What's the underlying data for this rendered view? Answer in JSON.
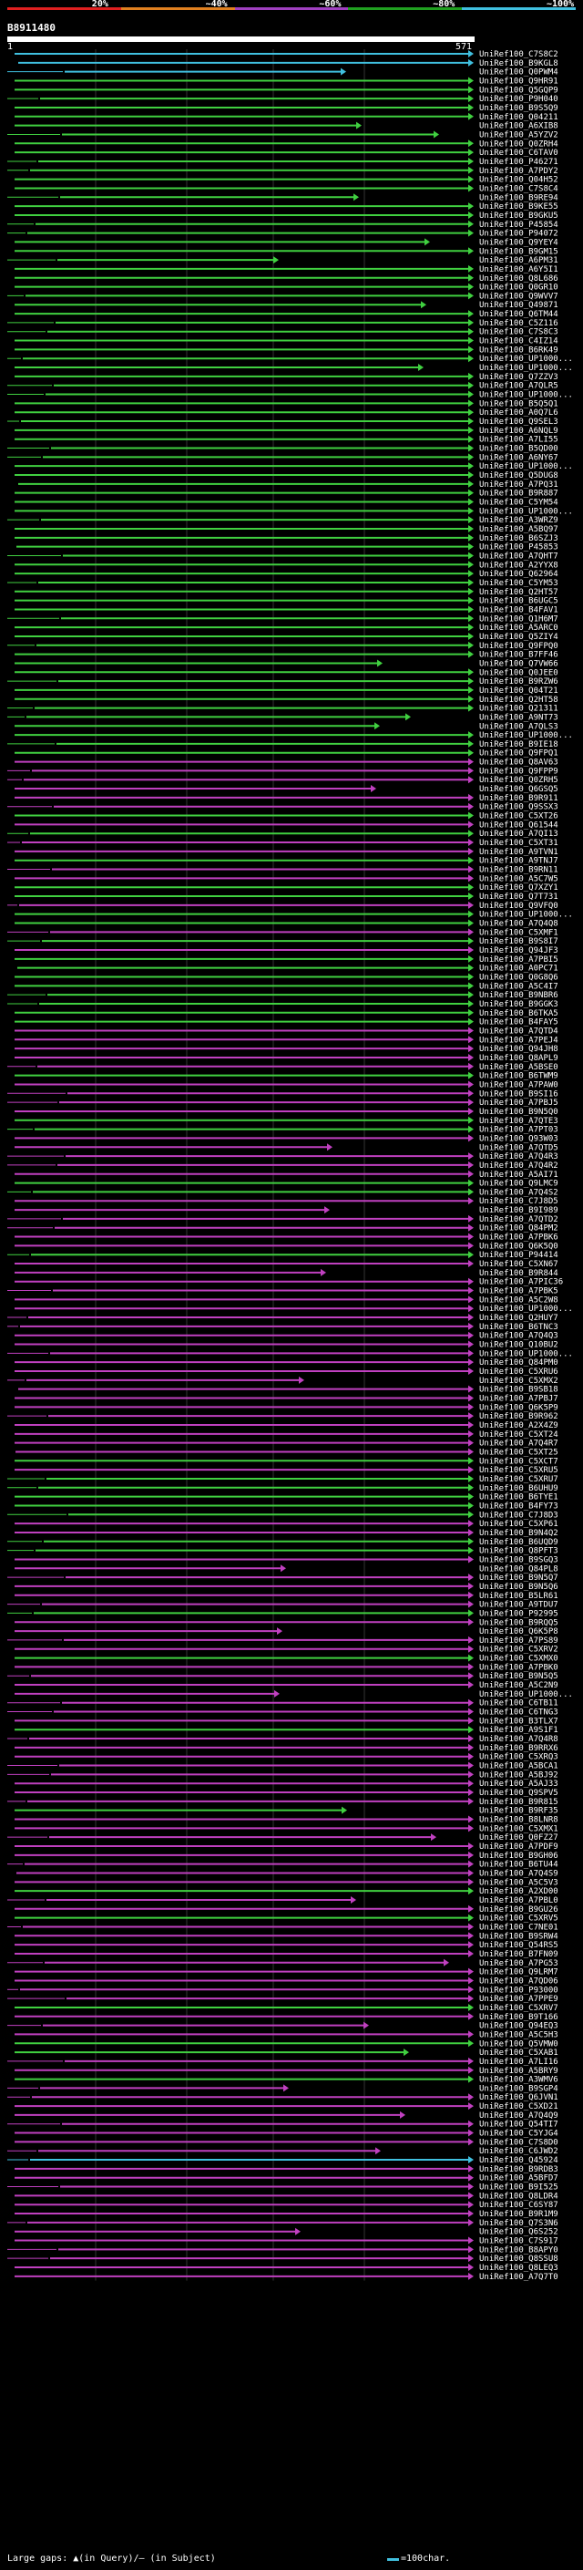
{
  "legend": {
    "labels": [
      "20%",
      "~40%",
      "~60%",
      "~80%",
      "~100%"
    ],
    "colors": [
      "#e02020",
      "#e08020",
      "#a040c0",
      "#20a020",
      "#40c0e0"
    ]
  },
  "query": {
    "id": "B8911480",
    "start": "1",
    "end": "571"
  },
  "colors": {
    "cyan": "#40c0e0",
    "green": "#40d040",
    "magenta": "#c040c0"
  },
  "hits": [
    {
      "id": "UniRef100_C7S8C2",
      "c": "cyan"
    },
    {
      "id": "UniRef100_B9KGL8",
      "c": "cyan"
    },
    {
      "id": "UniRef100_Q0PWM4",
      "c": "cyan"
    },
    {
      "id": "UniRef100_Q9HR91",
      "c": "green"
    },
    {
      "id": "UniRef100_Q5GQP9",
      "c": "green"
    },
    {
      "id": "UniRef100_P9H040",
      "c": "green"
    },
    {
      "id": "UniRef100_B9S5Q9",
      "c": "green"
    },
    {
      "id": "UniRef100_Q04211",
      "c": "green"
    },
    {
      "id": "UniRef100_A6XIB8",
      "c": "green"
    },
    {
      "id": "UniRef100_A5YZV2",
      "c": "green"
    },
    {
      "id": "UniRef100_Q0ZRH4",
      "c": "green"
    },
    {
      "id": "UniRef100_C6TAV0",
      "c": "green"
    },
    {
      "id": "UniRef100_P46271",
      "c": "green"
    },
    {
      "id": "UniRef100_A7PDY2",
      "c": "green"
    },
    {
      "id": "UniRef100_Q04H52",
      "c": "green"
    },
    {
      "id": "UniRef100_C7S8C4",
      "c": "green"
    },
    {
      "id": "UniRef100_B9RE94",
      "c": "green"
    },
    {
      "id": "UniRef100_B9KE55",
      "c": "green"
    },
    {
      "id": "UniRef100_B9GKU5",
      "c": "green"
    },
    {
      "id": "UniRef100_P45854",
      "c": "green"
    },
    {
      "id": "UniRef100_P94072",
      "c": "green"
    },
    {
      "id": "UniRef100_Q9YEY4",
      "c": "green"
    },
    {
      "id": "UniRef100_B9GM15",
      "c": "green"
    },
    {
      "id": "UniRef100_A6PM31",
      "c": "green"
    },
    {
      "id": "UniRef100_A6Y5I1",
      "c": "green"
    },
    {
      "id": "UniRef100_Q8L686",
      "c": "green"
    },
    {
      "id": "UniRef100_Q0GR10",
      "c": "green"
    },
    {
      "id": "UniRef100_Q9WVV7",
      "c": "green"
    },
    {
      "id": "UniRef100_Q49871",
      "c": "green"
    },
    {
      "id": "UniRef100_Q6TM44",
      "c": "green"
    },
    {
      "id": "UniRef100_C5Z116",
      "c": "green"
    },
    {
      "id": "UniRef100_C7S8C3",
      "c": "green"
    },
    {
      "id": "UniRef100_C4IZ14",
      "c": "green"
    },
    {
      "id": "UniRef100_B6RK49",
      "c": "green"
    },
    {
      "id": "UniRef100_UP1000...",
      "c": "green"
    },
    {
      "id": "UniRef100_UP1000...",
      "c": "green"
    },
    {
      "id": "UniRef100_Q7ZZV3",
      "c": "green"
    },
    {
      "id": "UniRef100_A7QLR5",
      "c": "green"
    },
    {
      "id": "UniRef100_UP1000...",
      "c": "green"
    },
    {
      "id": "UniRef100_B5Q5Q1",
      "c": "green"
    },
    {
      "id": "UniRef100_A0Q7L6",
      "c": "green"
    },
    {
      "id": "UniRef100_Q9SEL3",
      "c": "green"
    },
    {
      "id": "UniRef100_A6NQL9",
      "c": "green"
    },
    {
      "id": "UniRef100_A7LI55",
      "c": "green"
    },
    {
      "id": "UniRef100_B5QD00",
      "c": "green"
    },
    {
      "id": "UniRef100_A6NY67",
      "c": "green"
    },
    {
      "id": "UniRef100_UP1000...",
      "c": "green"
    },
    {
      "id": "UniRef100_Q5DUG8",
      "c": "green"
    },
    {
      "id": "UniRef100_A7PQ31",
      "c": "green"
    },
    {
      "id": "UniRef100_B9R887",
      "c": "green"
    },
    {
      "id": "UniRef100_C5YM54",
      "c": "green"
    },
    {
      "id": "UniRef100_UP1000...",
      "c": "green"
    },
    {
      "id": "UniRef100_A3WRZ9",
      "c": "green"
    },
    {
      "id": "UniRef100_A5BQ97",
      "c": "green"
    },
    {
      "id": "UniRef100_B6SZJ3",
      "c": "green"
    },
    {
      "id": "UniRef100_P45853",
      "c": "green"
    },
    {
      "id": "UniRef100_A7QHT7",
      "c": "green"
    },
    {
      "id": "UniRef100_A2YYX8",
      "c": "green"
    },
    {
      "id": "UniRef100_Q62964",
      "c": "green"
    },
    {
      "id": "UniRef100_C5YM53",
      "c": "green"
    },
    {
      "id": "UniRef100_Q2HT57",
      "c": "green"
    },
    {
      "id": "UniRef100_B6UGC5",
      "c": "green"
    },
    {
      "id": "UniRef100_B4FAV1",
      "c": "green"
    },
    {
      "id": "UniRef100_Q1H6M7",
      "c": "green"
    },
    {
      "id": "UniRef100_A5ARC0",
      "c": "green"
    },
    {
      "id": "UniRef100_Q5ZIY4",
      "c": "green"
    },
    {
      "id": "UniRef100_Q9FPQ0",
      "c": "green"
    },
    {
      "id": "UniRef100_B7FF46",
      "c": "green"
    },
    {
      "id": "UniRef100_Q7VW66",
      "c": "green"
    },
    {
      "id": "UniRef100_Q0JEE0",
      "c": "green"
    },
    {
      "id": "UniRef100_B9RZW6",
      "c": "green"
    },
    {
      "id": "UniRef100_Q04T21",
      "c": "green"
    },
    {
      "id": "UniRef100_Q2HT58",
      "c": "green"
    },
    {
      "id": "UniRef100_Q21311",
      "c": "green"
    },
    {
      "id": "UniRef100_A9NT73",
      "c": "green"
    },
    {
      "id": "UniRef100_A7QLS3",
      "c": "green"
    },
    {
      "id": "UniRef100_UP1000...",
      "c": "green"
    },
    {
      "id": "UniRef100_B9IE18",
      "c": "green"
    },
    {
      "id": "UniRef100_Q9FPQ1",
      "c": "green"
    },
    {
      "id": "UniRef100_Q8AV63",
      "c": "magenta"
    },
    {
      "id": "UniRef100_Q9FPP9",
      "c": "magenta"
    },
    {
      "id": "UniRef100_Q0ZRH5",
      "c": "magenta"
    },
    {
      "id": "UniRef100_Q6GSQ5",
      "c": "magenta"
    },
    {
      "id": "UniRef100_B9R911",
      "c": "magenta"
    },
    {
      "id": "UniRef100_Q9SSX3",
      "c": "magenta"
    },
    {
      "id": "UniRef100_C5XT26",
      "c": "green"
    },
    {
      "id": "UniRef100_Q61544",
      "c": "magenta"
    },
    {
      "id": "UniRef100_A7QI13",
      "c": "green"
    },
    {
      "id": "UniRef100_C5XT31",
      "c": "magenta"
    },
    {
      "id": "UniRef100_A9TVN1",
      "c": "magenta"
    },
    {
      "id": "UniRef100_A9TNJ7",
      "c": "green"
    },
    {
      "id": "UniRef100_B9RN11",
      "c": "magenta"
    },
    {
      "id": "UniRef100_A5C7W5",
      "c": "magenta"
    },
    {
      "id": "UniRef100_Q7XZY1",
      "c": "green"
    },
    {
      "id": "UniRef100_Q7T731",
      "c": "green"
    },
    {
      "id": "UniRef100_Q9VFQ0",
      "c": "magenta"
    },
    {
      "id": "UniRef100_UP1000...",
      "c": "green"
    },
    {
      "id": "UniRef100_A7Q4Q8",
      "c": "green"
    },
    {
      "id": "UniRef100_C5XMF1",
      "c": "magenta"
    },
    {
      "id": "UniRef100_B9S8I7",
      "c": "green"
    },
    {
      "id": "UniRef100_Q94JF3",
      "c": "magenta"
    },
    {
      "id": "UniRef100_A7PBI5",
      "c": "green"
    },
    {
      "id": "UniRef100_A0PC71",
      "c": "green"
    },
    {
      "id": "UniRef100_Q0G8Q6",
      "c": "green"
    },
    {
      "id": "UniRef100_A5C4I7",
      "c": "green"
    },
    {
      "id": "UniRef100_B9NBR6",
      "c": "green"
    },
    {
      "id": "UniRef100_B9GGK3",
      "c": "green"
    },
    {
      "id": "UniRef100_B6TKA5",
      "c": "green"
    },
    {
      "id": "UniRef100_B4FAY5",
      "c": "green"
    },
    {
      "id": "UniRef100_A7QTD4",
      "c": "magenta"
    },
    {
      "id": "UniRef100_A7PEJ4",
      "c": "magenta"
    },
    {
      "id": "UniRef100_Q94JH8",
      "c": "magenta"
    },
    {
      "id": "UniRef100_Q8APL9",
      "c": "magenta"
    },
    {
      "id": "UniRef100_A5BSE0",
      "c": "magenta"
    },
    {
      "id": "UniRef100_B6TWM9",
      "c": "green"
    },
    {
      "id": "UniRef100_A7PAW0",
      "c": "magenta"
    },
    {
      "id": "UniRef100_B9SI16",
      "c": "magenta"
    },
    {
      "id": "UniRef100_A7PBJ5",
      "c": "magenta"
    },
    {
      "id": "UniRef100_B9N5Q0",
      "c": "magenta"
    },
    {
      "id": "UniRef100_A7QTE3",
      "c": "green"
    },
    {
      "id": "UniRef100_A7PT03",
      "c": "green"
    },
    {
      "id": "UniRef100_Q93W03",
      "c": "magenta"
    },
    {
      "id": "UniRef100_A7QTD5",
      "c": "magenta"
    },
    {
      "id": "UniRef100_A7Q4R3",
      "c": "magenta"
    },
    {
      "id": "UniRef100_A7Q4R2",
      "c": "magenta"
    },
    {
      "id": "UniRef100_A5AI71",
      "c": "magenta"
    },
    {
      "id": "UniRef100_Q9LMC9",
      "c": "green"
    },
    {
      "id": "UniRef100_A7Q4S2",
      "c": "green"
    },
    {
      "id": "UniRef100_C7J8D5",
      "c": "magenta"
    },
    {
      "id": "UniRef100_B9I989",
      "c": "magenta"
    },
    {
      "id": "UniRef100_A7QTD2",
      "c": "magenta"
    },
    {
      "id": "UniRef100_Q84PM2",
      "c": "magenta"
    },
    {
      "id": "UniRef100_A7PBK6",
      "c": "magenta"
    },
    {
      "id": "UniRef100_Q6K5Q0",
      "c": "magenta"
    },
    {
      "id": "UniRef100_P94414",
      "c": "green"
    },
    {
      "id": "UniRef100_C5XN67",
      "c": "magenta"
    },
    {
      "id": "UniRef100_B9R844",
      "c": "magenta"
    },
    {
      "id": "UniRef100_A7PIC36",
      "c": "magenta"
    },
    {
      "id": "UniRef100_A7PBK5",
      "c": "magenta"
    },
    {
      "id": "UniRef100_A5C2W8",
      "c": "magenta"
    },
    {
      "id": "UniRef100_UP1000...",
      "c": "magenta"
    },
    {
      "id": "UniRef100_Q2HUY7",
      "c": "magenta"
    },
    {
      "id": "UniRef100_B6TNC3",
      "c": "magenta"
    },
    {
      "id": "UniRef100_A7Q4Q3",
      "c": "magenta"
    },
    {
      "id": "UniRef100_Q10BU2",
      "c": "magenta"
    },
    {
      "id": "UniRef100_UP1000...",
      "c": "magenta"
    },
    {
      "id": "UniRef100_Q84PM0",
      "c": "magenta"
    },
    {
      "id": "UniRef100_C5XRU6",
      "c": "magenta"
    },
    {
      "id": "UniRef100_C5XMX2",
      "c": "magenta"
    },
    {
      "id": "UniRef100_B9SB18",
      "c": "magenta"
    },
    {
      "id": "UniRef100_A7PBJ7",
      "c": "magenta"
    },
    {
      "id": "UniRef100_Q6K5P9",
      "c": "magenta"
    },
    {
      "id": "UniRef100_B9R962",
      "c": "magenta"
    },
    {
      "id": "UniRef100_A2X4Z9",
      "c": "magenta"
    },
    {
      "id": "UniRef100_C5XT24",
      "c": "magenta"
    },
    {
      "id": "UniRef100_A7Q4R7",
      "c": "magenta"
    },
    {
      "id": "UniRef100_C5XT25",
      "c": "magenta"
    },
    {
      "id": "UniRef100_C5XCT7",
      "c": "green"
    },
    {
      "id": "UniRef100_C5XRU5",
      "c": "magenta"
    },
    {
      "id": "UniRef100_C5XRU7",
      "c": "green"
    },
    {
      "id": "UniRef100_B6UHU9",
      "c": "green"
    },
    {
      "id": "UniRef100_B6TYE1",
      "c": "green"
    },
    {
      "id": "UniRef100_B4FY73",
      "c": "green"
    },
    {
      "id": "UniRef100_C7J8D3",
      "c": "green"
    },
    {
      "id": "UniRef100_C5XP61",
      "c": "magenta"
    },
    {
      "id": "UniRef100_B9N4Q2",
      "c": "magenta"
    },
    {
      "id": "UniRef100_B6UQD9",
      "c": "green"
    },
    {
      "id": "UniRef100_Q8PFT3",
      "c": "green"
    },
    {
      "id": "UniRef100_B9SGQ3",
      "c": "magenta"
    },
    {
      "id": "UniRef100_Q84PL8",
      "c": "magenta"
    },
    {
      "id": "UniRef100_B9N5Q7",
      "c": "magenta"
    },
    {
      "id": "UniRef100_B9N5Q6",
      "c": "magenta"
    },
    {
      "id": "UniRef100_B5LR61",
      "c": "magenta"
    },
    {
      "id": "UniRef100_A9TDU7",
      "c": "magenta"
    },
    {
      "id": "UniRef100_P92995",
      "c": "green"
    },
    {
      "id": "UniRef100_B9RQQ5",
      "c": "magenta"
    },
    {
      "id": "UniRef100_Q6K5P8",
      "c": "magenta"
    },
    {
      "id": "UniRef100_A7PS89",
      "c": "magenta"
    },
    {
      "id": "UniRef100_C5XRV2",
      "c": "magenta"
    },
    {
      "id": "UniRef100_C5XMX0",
      "c": "green"
    },
    {
      "id": "UniRef100_A7PBK0",
      "c": "magenta"
    },
    {
      "id": "UniRef100_B9N5Q5",
      "c": "magenta"
    },
    {
      "id": "UniRef100_A5C2N9",
      "c": "magenta"
    },
    {
      "id": "UniRef100_UP1000...",
      "c": "magenta"
    },
    {
      "id": "UniRef100_C6TB11",
      "c": "magenta"
    },
    {
      "id": "UniRef100_C6TNG3",
      "c": "magenta"
    },
    {
      "id": "UniRef100_B3TLX7",
      "c": "magenta"
    },
    {
      "id": "UniRef100_A9S1F1",
      "c": "green"
    },
    {
      "id": "UniRef100_A7Q4R8",
      "c": "magenta"
    },
    {
      "id": "UniRef100_B9RRX6",
      "c": "magenta"
    },
    {
      "id": "UniRef100_C5XRQ3",
      "c": "magenta"
    },
    {
      "id": "UniRef100_A5BCA1",
      "c": "magenta"
    },
    {
      "id": "UniRef100_A5BJ92",
      "c": "magenta"
    },
    {
      "id": "UniRef100_A5AJ33",
      "c": "magenta"
    },
    {
      "id": "UniRef100_Q9SPV5",
      "c": "magenta"
    },
    {
      "id": "UniRef100_B9R815",
      "c": "magenta"
    },
    {
      "id": "UniRef100_B9RF35",
      "c": "green"
    },
    {
      "id": "UniRef100_B8LNR8",
      "c": "magenta"
    },
    {
      "id": "UniRef100_C5XMX1",
      "c": "magenta"
    },
    {
      "id": "UniRef100_Q0FZ27",
      "c": "magenta"
    },
    {
      "id": "UniRef100_A7PDF9",
      "c": "magenta"
    },
    {
      "id": "UniRef100_B9GH06",
      "c": "magenta"
    },
    {
      "id": "UniRef100_B6TU44",
      "c": "magenta"
    },
    {
      "id": "UniRef100_A7Q4S9",
      "c": "magenta"
    },
    {
      "id": "UniRef100_A5C5V3",
      "c": "magenta"
    },
    {
      "id": "UniRef100_A2XD00",
      "c": "green"
    },
    {
      "id": "UniRef100_A7PBL0",
      "c": "magenta"
    },
    {
      "id": "UniRef100_B9GU26",
      "c": "magenta"
    },
    {
      "id": "UniRef100_C5XRV5",
      "c": "green"
    },
    {
      "id": "UniRef100_C7NE01",
      "c": "magenta"
    },
    {
      "id": "UniRef100_B9SRW4",
      "c": "magenta"
    },
    {
      "id": "UniRef100_Q54RS5",
      "c": "magenta"
    },
    {
      "id": "UniRef100_B7FN09",
      "c": "magenta"
    },
    {
      "id": "UniRef100_A7PG53",
      "c": "magenta"
    },
    {
      "id": "UniRef100_Q9LRM7",
      "c": "magenta"
    },
    {
      "id": "UniRef100_A7QD06",
      "c": "magenta"
    },
    {
      "id": "UniRef100_P93000",
      "c": "magenta"
    },
    {
      "id": "UniRef100_A7PPE9",
      "c": "magenta"
    },
    {
      "id": "UniRef100_C5XRV7",
      "c": "green"
    },
    {
      "id": "UniRef100_B9T166",
      "c": "magenta"
    },
    {
      "id": "UniRef100_Q94EQ3",
      "c": "magenta"
    },
    {
      "id": "UniRef100_A5C5H3",
      "c": "magenta"
    },
    {
      "id": "UniRef100_Q5VMW0",
      "c": "green"
    },
    {
      "id": "UniRef100_C5XAB1",
      "c": "green"
    },
    {
      "id": "UniRef100_A7LI16",
      "c": "magenta"
    },
    {
      "id": "UniRef100_A5BRY9",
      "c": "magenta"
    },
    {
      "id": "UniRef100_A3WMV6",
      "c": "green"
    },
    {
      "id": "UniRef100_B9SGP4",
      "c": "magenta"
    },
    {
      "id": "UniRef100_Q6JVN1",
      "c": "magenta"
    },
    {
      "id": "UniRef100_C5XD21",
      "c": "magenta"
    },
    {
      "id": "UniRef100_A7Q4Q9",
      "c": "magenta"
    },
    {
      "id": "UniRef100_Q54TI7",
      "c": "magenta"
    },
    {
      "id": "UniRef100_C5YJG4",
      "c": "magenta"
    },
    {
      "id": "UniRef100_C7S8D0",
      "c": "magenta"
    },
    {
      "id": "UniRef100_C6JWD2",
      "c": "magenta"
    },
    {
      "id": "UniRef100_Q45924",
      "c": "cyan"
    },
    {
      "id": "UniRef100_B9RDB3",
      "c": "magenta"
    },
    {
      "id": "UniRef100_A5BFD7",
      "c": "magenta"
    },
    {
      "id": "UniRef100_B9I525",
      "c": "magenta"
    },
    {
      "id": "UniRef100_Q8LDR4",
      "c": "magenta"
    },
    {
      "id": "UniRef100_C6SY87",
      "c": "magenta"
    },
    {
      "id": "UniRef100_B9R1M9",
      "c": "magenta"
    },
    {
      "id": "UniRef100_Q7S3N6",
      "c": "magenta"
    },
    {
      "id": "UniRef100_Q6S252",
      "c": "magenta"
    },
    {
      "id": "UniRef100_C7S917",
      "c": "magenta"
    },
    {
      "id": "UniRef100_B8APY0",
      "c": "magenta"
    },
    {
      "id": "UniRef100_Q8SSU8",
      "c": "magenta"
    },
    {
      "id": "UniRef100_Q8LEQ3",
      "c": "magenta"
    },
    {
      "id": "UniRef100_A7Q7T0",
      "c": "magenta"
    }
  ],
  "footer": {
    "left": "Large gaps: ▲(in Query)/– (in Subject)",
    "right": "=100char."
  }
}
